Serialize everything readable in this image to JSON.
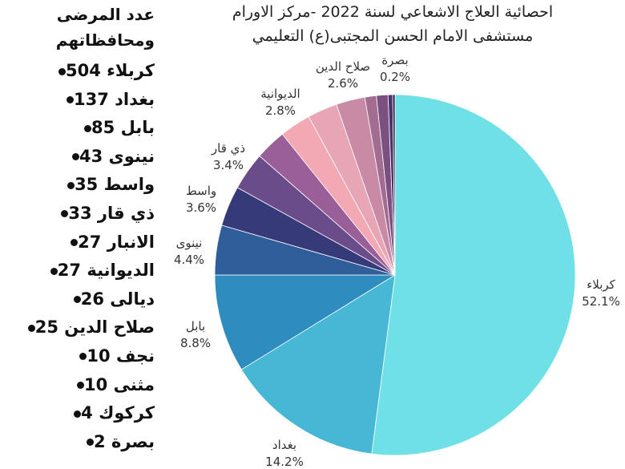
{
  "patients_list": {
    "title_line1": "عدد المرضى",
    "title_line2": "ومحافظاتهم",
    "items": [
      "كربلاء 504",
      "بغداد 137",
      "بابل 85",
      "نينوى 43",
      "واسط 35",
      "ذي قار 33",
      "الانبار 27",
      "الديوانية 27",
      "ديالى 26",
      "صلاح الدين 25",
      "نجف 10",
      "مثنى 10",
      "كركوك 4",
      "بصرة 2"
    ]
  },
  "chart_data": {
    "type": "pie",
    "title_line1": "احصائية العلاج الاشعاعي لسنة 2022 -مركز الاورام",
    "title_line2": "مستشفى الامام الحسن المجتبى(ع) التعليمي",
    "slices": [
      {
        "label": "كربلاء",
        "value": 504,
        "pct_label": "52.1%",
        "color": "#6ee0e6",
        "show_label": true
      },
      {
        "label": "بغداد",
        "value": 137,
        "pct_label": "14.2%",
        "color": "#46b8d6",
        "show_label": true
      },
      {
        "label": "بابل",
        "value": 85,
        "pct_label": "8.8%",
        "color": "#2e8cbe",
        "show_label": true
      },
      {
        "label": "نينوى",
        "value": 43,
        "pct_label": "4.4%",
        "color": "#2f5e9a",
        "show_label": true
      },
      {
        "label": "واسط",
        "value": 35,
        "pct_label": "3.6%",
        "color": "#363a78",
        "show_label": true
      },
      {
        "label": "ذي قار",
        "value": 33,
        "pct_label": "3.4%",
        "color": "#6b4c8a",
        "show_label": true
      },
      {
        "label": "الانبار",
        "value": 27,
        "pct_label": "",
        "color": "#9a5f98",
        "show_label": false
      },
      {
        "label": "الديوانية",
        "value": 27,
        "pct_label": "2.8%",
        "color": "#f2a9b3",
        "show_label": true
      },
      {
        "label": "ديالى",
        "value": 26,
        "pct_label": "",
        "color": "#e7a6b5",
        "show_label": false
      },
      {
        "label": "صلاح الدين",
        "value": 25,
        "pct_label": "2.6%",
        "color": "#c98aa6",
        "show_label": true
      },
      {
        "label": "نجف",
        "value": 10,
        "pct_label": "",
        "color": "#a36c91",
        "show_label": false
      },
      {
        "label": "مثنى",
        "value": 10,
        "pct_label": "",
        "color": "#7b4f80",
        "show_label": false
      },
      {
        "label": "كركوك",
        "value": 4,
        "pct_label": "",
        "color": "#4a3468",
        "show_label": false
      },
      {
        "label": "بصرة",
        "value": 2,
        "pct_label": "0.2%",
        "color": "#231a47",
        "show_label": true
      }
    ]
  }
}
